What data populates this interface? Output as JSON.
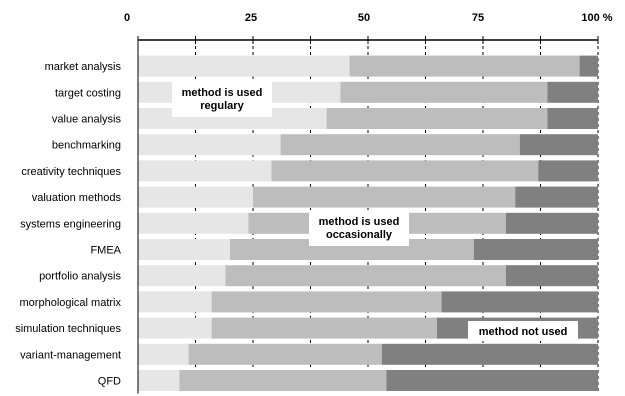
{
  "chart_data": {
    "type": "bar",
    "orientation": "horizontal",
    "stacked": "percent",
    "categories": [
      "market analysis",
      "target costing",
      "value analysis",
      "benchmarking",
      "creativity techniques",
      "valuation methods",
      "systems engineering",
      "FMEA",
      "portfolio analysis",
      "morphological matrix",
      "simulation techniques",
      "variant-management",
      "QFD"
    ],
    "series": [
      {
        "name": "method is used regulary",
        "values": [
          46,
          44,
          41,
          31,
          29,
          25,
          24,
          20,
          19,
          16,
          16,
          11,
          9
        ],
        "color": "#e6e6e6"
      },
      {
        "name": "method is used occasionally",
        "values": [
          50,
          45,
          48,
          52,
          58,
          57,
          56,
          53,
          61,
          50,
          49,
          42,
          45
        ],
        "color": "#bdbdbd"
      },
      {
        "name": "method not used",
        "values": [
          4,
          11,
          11,
          17,
          13,
          18,
          20,
          27,
          20,
          34,
          35,
          47,
          46
        ],
        "color": "#808080"
      }
    ],
    "xlim": [
      0,
      100
    ],
    "xticks": [
      "0",
      "25",
      "50",
      "75",
      "100 %"
    ],
    "grid": "dashed vertical",
    "legend": "inline annotations"
  }
}
